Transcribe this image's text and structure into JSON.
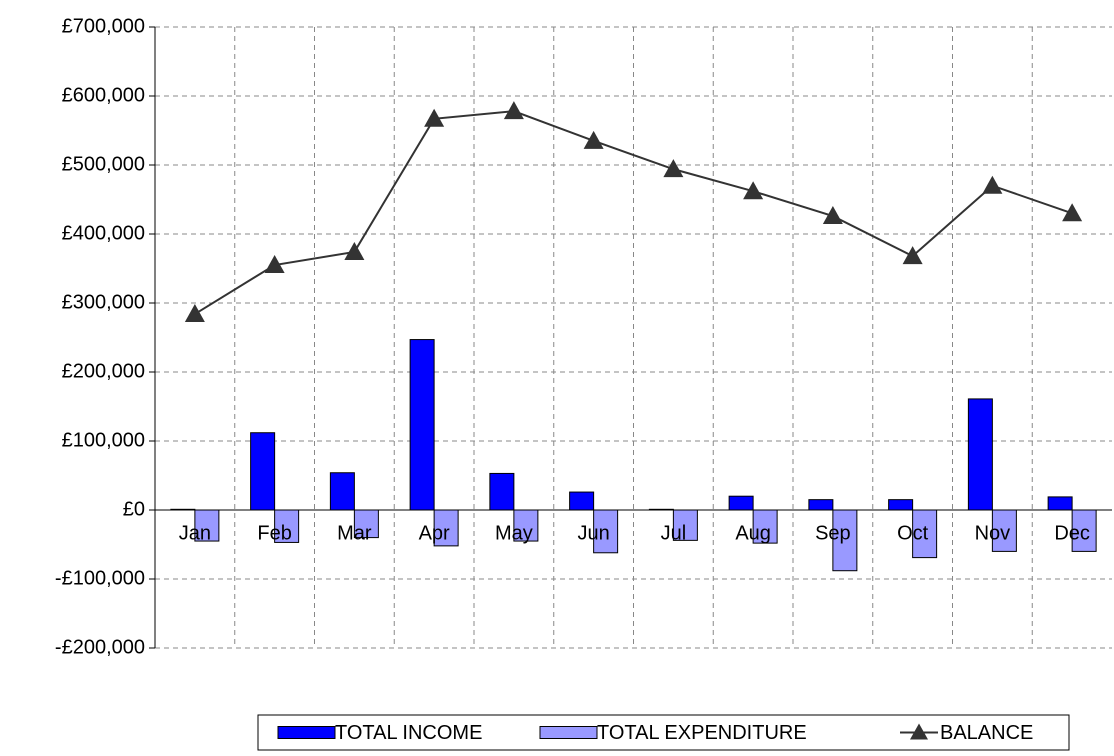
{
  "chart_data": {
    "type": "bar_line",
    "categories": [
      "Jan",
      "Feb",
      "Mar",
      "Apr",
      "May",
      "Jun",
      "Jul",
      "Aug",
      "Sep",
      "Oct",
      "Nov",
      "Dec"
    ],
    "series": [
      {
        "name": "TOTAL INCOME",
        "type": "bar",
        "color": "#0000ff",
        "values": [
          1000,
          112000,
          54000,
          247000,
          53000,
          26000,
          1000,
          20000,
          15000,
          15000,
          161000,
          19000
        ]
      },
      {
        "name": "TOTAL EXPENDITURE",
        "type": "bar",
        "color": "#9999ff",
        "values": [
          -45000,
          -47000,
          -40000,
          -52000,
          -45000,
          -62000,
          -44000,
          -48000,
          -88000,
          -69000,
          -60000,
          -60000
        ]
      },
      {
        "name": "BALANCE",
        "type": "line",
        "color": "#333333",
        "values": [
          284000,
          355000,
          374000,
          567000,
          578000,
          535000,
          494000,
          462000,
          426000,
          368000,
          470000,
          430000
        ]
      }
    ],
    "ylim": [
      -200000,
      700000
    ],
    "yticks": [
      {
        "value": -200000,
        "label": "-£200,000"
      },
      {
        "value": -100000,
        "label": "-£100,000"
      },
      {
        "value": 0,
        "label": "£0"
      },
      {
        "value": 100000,
        "label": "£100,000"
      },
      {
        "value": 200000,
        "label": "£200,000"
      },
      {
        "value": 300000,
        "label": "£300,000"
      },
      {
        "value": 400000,
        "label": "£400,000"
      },
      {
        "value": 500000,
        "label": "£500,000"
      },
      {
        "value": 600000,
        "label": "£600,000"
      },
      {
        "value": 700000,
        "label": "£700,000"
      }
    ],
    "grid": true,
    "legend": "bottom"
  }
}
